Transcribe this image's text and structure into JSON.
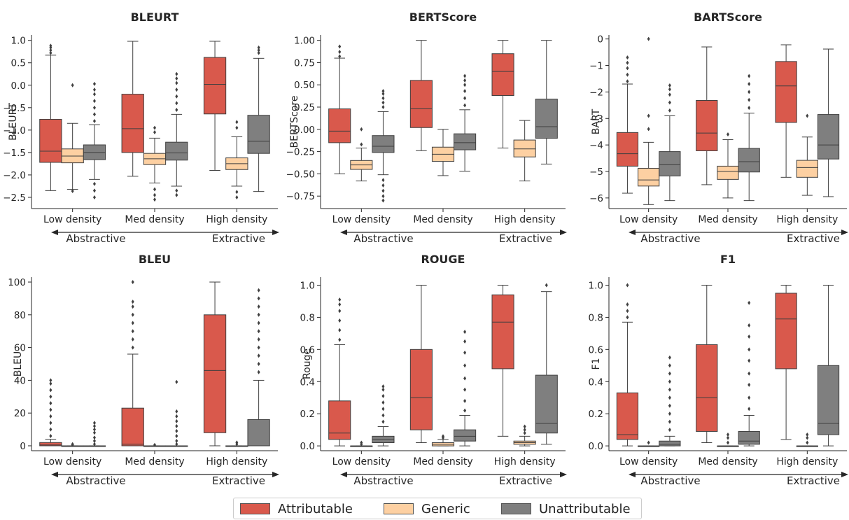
{
  "legend": {
    "items": [
      {
        "label": "Attributable",
        "color": "#d9594c"
      },
      {
        "label": "Generic",
        "color": "#fdd0a2"
      },
      {
        "label": "Unattributable",
        "color": "#7f7f7f"
      }
    ]
  },
  "density_arrow": {
    "left": "Abstractive",
    "right": "Extractive"
  },
  "chart_data": [
    {
      "type": "box",
      "title": "BLEURT",
      "ylabel": "BLEURT",
      "categories": [
        "Low density",
        "Med density",
        "High density"
      ],
      "ylim": [
        -2.75,
        1.12
      ],
      "yticks": [
        1.0,
        0.5,
        0.0,
        -0.5,
        -1.0,
        -1.5,
        -2.0,
        -2.5
      ],
      "yticklabels": [
        "1.0",
        "0.5",
        "0.0",
        "−0.5",
        "−1.0",
        "−1.5",
        "−2.0",
        "−2.5"
      ],
      "series": [
        {
          "name": "Attributable",
          "boxes": [
            {
              "min": -2.35,
              "q1": -1.72,
              "median": -1.47,
              "q3": -0.76,
              "max": 0.67,
              "fliers": [
                0.72,
                0.78,
                0.84,
                0.88
              ]
            },
            {
              "min": -2.03,
              "q1": -1.5,
              "median": -0.97,
              "q3": -0.2,
              "max": 0.98,
              "fliers": []
            },
            {
              "min": -1.9,
              "q1": -0.64,
              "median": 0.02,
              "q3": 0.62,
              "max": 0.98,
              "fliers": []
            }
          ]
        },
        {
          "name": "Generic",
          "boxes": [
            {
              "min": -2.32,
              "q1": -1.73,
              "median": -1.58,
              "q3": -1.42,
              "max": -0.85,
              "fliers": [
                -2.36,
                0.0
              ]
            },
            {
              "min": -2.18,
              "q1": -1.77,
              "median": -1.64,
              "q3": -1.52,
              "max": -1.18,
              "fliers": [
                -0.95,
                -1.05,
                -2.32,
                -2.45,
                -2.55
              ]
            },
            {
              "min": -2.25,
              "q1": -1.88,
              "median": -1.75,
              "q3": -1.62,
              "max": -1.15,
              "fliers": [
                -0.82,
                -0.95,
                -2.38,
                -2.5
              ]
            }
          ]
        },
        {
          "name": "Unattributable",
          "boxes": [
            {
              "min": -2.1,
              "q1": -1.66,
              "median": -1.5,
              "q3": -1.33,
              "max": -0.88,
              "fliers": [
                -0.8,
                -0.65,
                -0.5,
                -0.35,
                -0.2,
                -0.1,
                0.03,
                -2.2,
                -2.35,
                -2.5
              ]
            },
            {
              "min": -2.25,
              "q1": -1.67,
              "median": -1.51,
              "q3": -1.27,
              "max": -0.65,
              "fliers": [
                -0.55,
                -0.4,
                -0.25,
                -0.1,
                0.05,
                0.15,
                0.25,
                -2.35,
                -2.45
              ]
            },
            {
              "min": -2.37,
              "q1": -1.52,
              "median": -1.25,
              "q3": -0.67,
              "max": 0.6,
              "fliers": [
                0.72,
                0.78,
                0.84
              ]
            }
          ]
        }
      ]
    },
    {
      "type": "box",
      "title": "BERTScore",
      "ylabel": "BERTScore",
      "categories": [
        "Low density",
        "Med density",
        "High density"
      ],
      "ylim": [
        -0.89,
        1.06
      ],
      "yticks": [
        1.0,
        0.75,
        0.5,
        0.25,
        0.0,
        -0.25,
        -0.5,
        -0.75
      ],
      "yticklabels": [
        "1.00",
        "0.75",
        "0.50",
        "0.25",
        "0.00",
        "−0.25",
        "−0.50",
        "−0.75"
      ],
      "series": [
        {
          "name": "Attributable",
          "boxes": [
            {
              "min": -0.5,
              "q1": -0.15,
              "median": -0.02,
              "q3": 0.23,
              "max": 0.8,
              "fliers": [
                0.82,
                0.87,
                0.93
              ]
            },
            {
              "min": -0.24,
              "q1": 0.02,
              "median": 0.23,
              "q3": 0.55,
              "max": 1.0,
              "fliers": []
            },
            {
              "min": -0.21,
              "q1": 0.38,
              "median": 0.65,
              "q3": 0.85,
              "max": 1.0,
              "fliers": []
            }
          ]
        },
        {
          "name": "Generic",
          "boxes": [
            {
              "min": -0.58,
              "q1": -0.45,
              "median": -0.4,
              "q3": -0.35,
              "max": -0.21,
              "fliers": [
                -0.17,
                0.0
              ]
            },
            {
              "min": -0.52,
              "q1": -0.36,
              "median": -0.28,
              "q3": -0.2,
              "max": 0.0,
              "fliers": []
            },
            {
              "min": -0.58,
              "q1": -0.31,
              "median": -0.22,
              "q3": -0.12,
              "max": 0.1,
              "fliers": []
            }
          ]
        },
        {
          "name": "Unattributable",
          "boxes": [
            {
              "min": -0.51,
              "q1": -0.26,
              "median": -0.19,
              "q3": -0.07,
              "max": 0.2,
              "fliers": [
                0.25,
                0.3,
                0.35,
                0.4,
                0.43,
                -0.57,
                -0.63,
                -0.69,
                -0.75,
                -0.8
              ]
            },
            {
              "min": -0.47,
              "q1": -0.23,
              "median": -0.15,
              "q3": -0.05,
              "max": 0.22,
              "fliers": [
                0.27,
                0.35,
                0.43,
                0.5,
                0.55,
                0.6
              ]
            },
            {
              "min": -0.39,
              "q1": -0.1,
              "median": 0.03,
              "q3": 0.34,
              "max": 1.0,
              "fliers": []
            }
          ]
        }
      ]
    },
    {
      "type": "box",
      "title": "BARTScore",
      "ylabel": "BART",
      "categories": [
        "Low density",
        "Med density",
        "High density"
      ],
      "ylim": [
        -6.4,
        0.15
      ],
      "yticks": [
        0,
        -1,
        -2,
        -3,
        -4,
        -5,
        -6
      ],
      "yticklabels": [
        "0",
        "−1",
        "−2",
        "−3",
        "−4",
        "−5",
        "−6"
      ],
      "series": [
        {
          "name": "Attributable",
          "boxes": [
            {
              "min": -5.82,
              "q1": -4.8,
              "median": -4.33,
              "q3": -3.53,
              "max": -1.7,
              "fliers": [
                -1.6,
                -1.35,
                -1.1,
                -0.9,
                -0.7
              ]
            },
            {
              "min": -5.5,
              "q1": -4.22,
              "median": -3.55,
              "q3": -2.32,
              "max": -0.3,
              "fliers": []
            },
            {
              "min": -5.22,
              "q1": -3.15,
              "median": -1.77,
              "q3": -0.85,
              "max": -0.22,
              "fliers": []
            }
          ]
        },
        {
          "name": "Generic",
          "boxes": [
            {
              "min": -6.25,
              "q1": -5.55,
              "median": -5.32,
              "q3": -4.88,
              "max": -3.9,
              "fliers": [
                -3.4,
                -2.9,
                0.0
              ]
            },
            {
              "min": -6.0,
              "q1": -5.3,
              "median": -5.0,
              "q3": -4.8,
              "max": -3.8,
              "fliers": [
                -3.6
              ]
            },
            {
              "min": -5.9,
              "q1": -5.22,
              "median": -4.85,
              "q3": -4.58,
              "max": -3.7,
              "fliers": [
                -2.9
              ]
            }
          ]
        },
        {
          "name": "Unattributable",
          "boxes": [
            {
              "min": -6.1,
              "q1": -5.17,
              "median": -4.75,
              "q3": -4.25,
              "max": -2.9,
              "fliers": [
                -2.7,
                -2.4,
                -2.1,
                -1.9,
                -1.75
              ]
            },
            {
              "min": -6.1,
              "q1": -5.02,
              "median": -4.63,
              "q3": -4.13,
              "max": -2.8,
              "fliers": [
                -2.6,
                -2.3,
                -2.0,
                -1.7,
                -1.4
              ]
            },
            {
              "min": -5.95,
              "q1": -4.53,
              "median": -4.0,
              "q3": -2.85,
              "max": -0.38,
              "fliers": []
            }
          ]
        }
      ]
    },
    {
      "type": "box",
      "title": "BLEU",
      "ylabel": "BLEU",
      "categories": [
        "Low density",
        "Med density",
        "High density"
      ],
      "ylim": [
        -3,
        103
      ],
      "yticks": [
        0,
        20,
        40,
        60,
        80,
        100
      ],
      "yticklabels": [
        "0",
        "20",
        "40",
        "60",
        "80",
        "100"
      ],
      "series": [
        {
          "name": "Attributable",
          "boxes": [
            {
              "min": 0,
              "q1": 0,
              "median": 0.5,
              "q3": 2,
              "max": 4,
              "fliers": [
                6,
                10,
                14,
                18,
                22,
                26,
                30,
                34,
                38,
                40
              ]
            },
            {
              "min": 0,
              "q1": 0,
              "median": 1,
              "q3": 23,
              "max": 56,
              "fliers": [
                60,
                65,
                70,
                75,
                80,
                85,
                88,
                100
              ]
            },
            {
              "min": 0,
              "q1": 8,
              "median": 46,
              "q3": 80,
              "max": 100,
              "fliers": []
            }
          ]
        },
        {
          "name": "Generic",
          "boxes": [
            {
              "min": 0,
              "q1": 0,
              "median": 0,
              "q3": 0,
              "max": 0,
              "fliers": [
                0.5,
                1
              ]
            },
            {
              "min": 0,
              "q1": 0,
              "median": 0,
              "q3": 0,
              "max": 0,
              "fliers": [
                0.5
              ]
            },
            {
              "min": 0,
              "q1": 0,
              "median": 0,
              "q3": 0,
              "max": 0,
              "fliers": [
                1,
                2
              ]
            }
          ]
        },
        {
          "name": "Unattributable",
          "boxes": [
            {
              "min": 0,
              "q1": 0,
              "median": 0,
              "q3": 0,
              "max": 0,
              "fliers": [
                1,
                3,
                5,
                8,
                10,
                12,
                14
              ]
            },
            {
              "min": 0,
              "q1": 0,
              "median": 0,
              "q3": 0,
              "max": 0,
              "fliers": [
                1,
                3,
                6,
                9,
                12,
                15,
                18,
                21,
                39
              ]
            },
            {
              "min": 0,
              "q1": 0,
              "median": 0,
              "q3": 16,
              "max": 40,
              "fliers": [
                45,
                50,
                55,
                60,
                65,
                70,
                75,
                80,
                85,
                90,
                95
              ]
            }
          ]
        }
      ]
    },
    {
      "type": "box",
      "title": "ROUGE",
      "ylabel": "Rouge",
      "categories": [
        "Low density",
        "Med density",
        "High density"
      ],
      "ylim": [
        -0.03,
        1.05
      ],
      "yticks": [
        0.0,
        0.2,
        0.4,
        0.6,
        0.8,
        1.0
      ],
      "yticklabels": [
        "0.0",
        "0.2",
        "0.4",
        "0.6",
        "0.8",
        "1.0"
      ],
      "series": [
        {
          "name": "Attributable",
          "boxes": [
            {
              "min": 0.0,
              "q1": 0.04,
              "median": 0.08,
              "q3": 0.28,
              "max": 0.63,
              "fliers": [
                0.66,
                0.72,
                0.78,
                0.84,
                0.88,
                0.91
              ]
            },
            {
              "min": 0.02,
              "q1": 0.1,
              "median": 0.3,
              "q3": 0.6,
              "max": 1.0,
              "fliers": []
            },
            {
              "min": 0.06,
              "q1": 0.48,
              "median": 0.77,
              "q3": 0.94,
              "max": 1.0,
              "fliers": []
            }
          ]
        },
        {
          "name": "Generic",
          "boxes": [
            {
              "min": 0.0,
              "q1": 0.0,
              "median": 0.0,
              "q3": 0.0,
              "max": 0.0,
              "fliers": [
                0.01,
                0.02
              ]
            },
            {
              "min": 0.0,
              "q1": 0.0,
              "median": 0.01,
              "q3": 0.02,
              "max": 0.04,
              "fliers": [
                0.05,
                0.06
              ]
            },
            {
              "min": 0.0,
              "q1": 0.01,
              "median": 0.02,
              "q3": 0.03,
              "max": 0.06,
              "fliers": [
                0.08,
                0.1,
                0.12
              ]
            }
          ]
        },
        {
          "name": "Unattributable",
          "boxes": [
            {
              "min": 0.0,
              "q1": 0.02,
              "median": 0.04,
              "q3": 0.06,
              "max": 0.12,
              "fliers": [
                0.15,
                0.19,
                0.23,
                0.27,
                0.31,
                0.35,
                0.37
              ]
            },
            {
              "min": 0.0,
              "q1": 0.03,
              "median": 0.06,
              "q3": 0.1,
              "max": 0.19,
              "fliers": [
                0.22,
                0.28,
                0.35,
                0.42,
                0.5,
                0.58,
                0.65,
                0.71
              ]
            },
            {
              "min": 0.01,
              "q1": 0.08,
              "median": 0.14,
              "q3": 0.44,
              "max": 0.96,
              "fliers": [
                1.0
              ]
            }
          ]
        }
      ]
    },
    {
      "type": "box",
      "title": "F1",
      "ylabel": "F1",
      "categories": [
        "Low density",
        "Med density",
        "High density"
      ],
      "ylim": [
        -0.03,
        1.05
      ],
      "yticks": [
        0.0,
        0.2,
        0.4,
        0.6,
        0.8,
        1.0
      ],
      "yticklabels": [
        "0.0",
        "0.2",
        "0.4",
        "0.6",
        "0.8",
        "1.0"
      ],
      "series": [
        {
          "name": "Attributable",
          "boxes": [
            {
              "min": 0.0,
              "q1": 0.04,
              "median": 0.07,
              "q3": 0.33,
              "max": 0.77,
              "fliers": [
                0.8,
                0.84,
                0.88,
                1.0
              ]
            },
            {
              "min": 0.02,
              "q1": 0.09,
              "median": 0.3,
              "q3": 0.63,
              "max": 1.0,
              "fliers": []
            },
            {
              "min": 0.04,
              "q1": 0.48,
              "median": 0.79,
              "q3": 0.95,
              "max": 1.0,
              "fliers": []
            }
          ]
        },
        {
          "name": "Generic",
          "boxes": [
            {
              "min": 0.0,
              "q1": 0.0,
              "median": 0.0,
              "q3": 0.0,
              "max": 0.0,
              "fliers": [
                0.02
              ]
            },
            {
              "min": 0.0,
              "q1": 0.0,
              "median": 0.0,
              "q3": 0.0,
              "max": 0.0,
              "fliers": [
                0.02,
                0.05,
                0.07
              ]
            },
            {
              "min": 0.0,
              "q1": 0.0,
              "median": 0.0,
              "q3": 0.0,
              "max": 0.0,
              "fliers": [
                0.02,
                0.05,
                0.07
              ]
            }
          ]
        },
        {
          "name": "Unattributable",
          "boxes": [
            {
              "min": 0.0,
              "q1": 0.0,
              "median": 0.01,
              "q3": 0.03,
              "max": 0.06,
              "fliers": [
                0.1,
                0.15,
                0.2,
                0.25,
                0.3,
                0.35,
                0.4,
                0.45,
                0.5,
                0.55
              ]
            },
            {
              "min": 0.0,
              "q1": 0.01,
              "median": 0.03,
              "q3": 0.09,
              "max": 0.19,
              "fliers": [
                0.23,
                0.3,
                0.38,
                0.45,
                0.53,
                0.6,
                0.68,
                0.75,
                0.89
              ]
            },
            {
              "min": 0.0,
              "q1": 0.07,
              "median": 0.14,
              "q3": 0.5,
              "max": 1.0,
              "fliers": []
            }
          ]
        }
      ]
    }
  ]
}
